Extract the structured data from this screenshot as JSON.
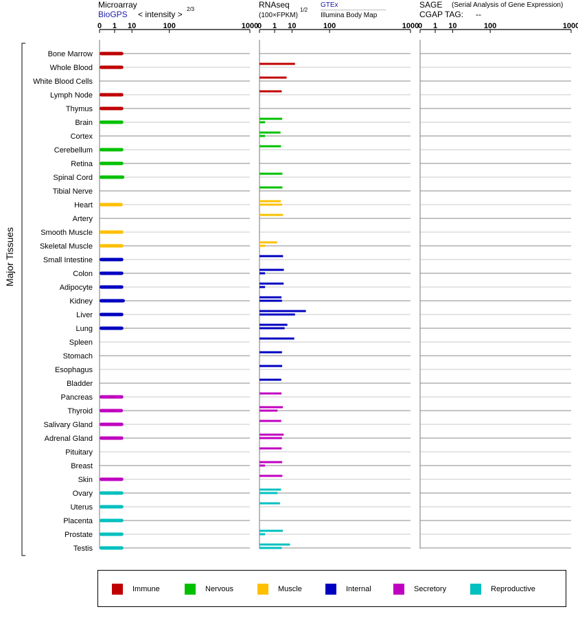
{
  "headers": {
    "microarray": "Microarray",
    "biogps": "BioGPS",
    "intensity": "< intensity >",
    "intensity_exp": "2/3",
    "rnaseq": "RNAseq",
    "fpkm": "(100×FPKM)",
    "fpkm_exp": "1/2",
    "gtex": "GTEx",
    "illumina": "Illumina Body Map",
    "sage": "SAGE",
    "sage_desc": "(Serial Analysis of Gene Expression)",
    "cgap": "CGAP TAG:",
    "cgap_value": "--"
  },
  "chart_data": {
    "type": "bar",
    "ylabel": "Major Tissues",
    "x_scale": "power",
    "xlim": [
      0,
      1000
    ],
    "x_ticks": [
      "0",
      "1",
      "10",
      "100",
      "1000"
    ],
    "categories": [
      "Bone Marrow",
      "Whole Blood",
      "White Blood Cells",
      "Lymph Node",
      "Thymus",
      "Brain",
      "Cortex",
      "Cerebellum",
      "Retina",
      "Spinal Cord",
      "Tibial Nerve",
      "Heart",
      "Artery",
      "Smooth Muscle",
      "Skeletal Muscle",
      "Small Intestine",
      "Colon",
      "Adipocyte",
      "Kidney",
      "Liver",
      "Lung",
      "Spleen",
      "Stomach",
      "Esophagus",
      "Bladder",
      "Pancreas",
      "Thyroid",
      "Salivary Gland",
      "Adrenal Gland",
      "Pituitary",
      "Breast",
      "Skin",
      "Ovary",
      "Uterus",
      "Placenta",
      "Prostate",
      "Testis"
    ],
    "groups": [
      "Immune",
      "Immune",
      "Immune",
      "Immune",
      "Immune",
      "Nervous",
      "Nervous",
      "Nervous",
      "Nervous",
      "Nervous",
      "Nervous",
      "Muscle",
      "Muscle",
      "Muscle",
      "Muscle",
      "Internal",
      "Internal",
      "Internal",
      "Internal",
      "Internal",
      "Internal",
      "Internal",
      "Internal",
      "Internal",
      "Internal",
      "Secretory",
      "Secretory",
      "Secretory",
      "Secretory",
      "Secretory",
      "Secretory",
      "Secretory",
      "Reproductive",
      "Reproductive",
      "Reproductive",
      "Reproductive",
      "Reproductive"
    ],
    "legend": [
      {
        "name": "Immune",
        "color": "#c00000"
      },
      {
        "name": "Nervous",
        "color": "#00c000"
      },
      {
        "name": "Muscle",
        "color": "#ffc000"
      },
      {
        "name": "Internal",
        "color": "#0000c0"
      },
      {
        "name": "Secretory",
        "color": "#c000c0"
      },
      {
        "name": "Reproductive",
        "color": "#00c0c0"
      }
    ],
    "legend_position": "bottom",
    "panels": [
      {
        "name": "Microarray",
        "values": [
          4,
          4,
          null,
          4,
          4,
          4,
          null,
          4,
          4,
          4.5,
          null,
          3.7,
          null,
          4,
          4,
          4,
          4,
          4,
          4.8,
          4,
          4,
          null,
          null,
          null,
          null,
          4,
          3.8,
          4,
          4,
          null,
          null,
          4,
          4,
          4,
          4,
          4,
          4
        ]
      },
      {
        "name": "RNAseq GTEx",
        "values": [
          null,
          13,
          5.8,
          3.2,
          null,
          3.4,
          2.7,
          2.9,
          null,
          3.5,
          3.5,
          2.8,
          3.8,
          null,
          1.6,
          3.8,
          4.2,
          4.1,
          3.1,
          29,
          6.3,
          12.2,
          3.3,
          3.4,
          3,
          3.1,
          3.7,
          3,
          4.1,
          3.2,
          3.4,
          3.5,
          2.9,
          2.5,
          null,
          3.7,
          8.3
        ]
      },
      {
        "name": "RNAseq Illumina Body Map",
        "values": [
          null,
          null,
          null,
          null,
          null,
          0.05,
          0.05,
          null,
          null,
          null,
          null,
          3.3,
          null,
          null,
          0.05,
          null,
          0.05,
          0.05,
          3.3,
          13,
          4.6,
          null,
          null,
          null,
          null,
          null,
          1.7,
          null,
          3.3,
          null,
          0.05,
          null,
          1.7,
          null,
          null,
          0.05,
          3.2
        ]
      },
      {
        "name": "SAGE",
        "values": []
      }
    ]
  }
}
